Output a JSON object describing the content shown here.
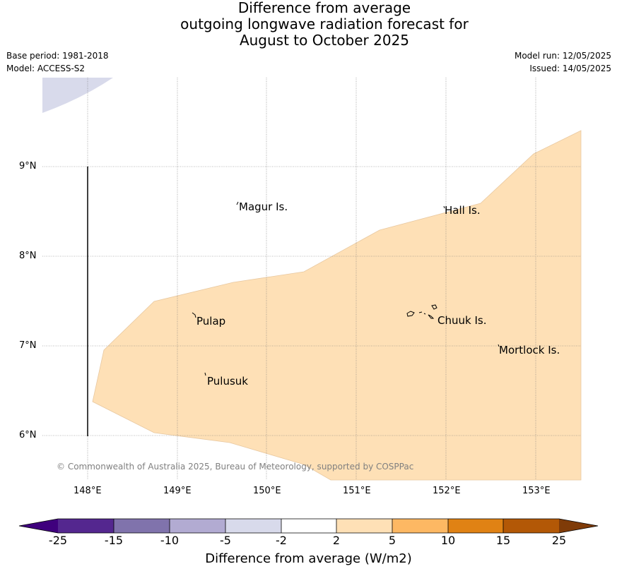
{
  "title_lines": [
    "Difference from average",
    "outgoing longwave radiation forecast for",
    "August to October 2025"
  ],
  "base_period": "Base period: 1981-2018",
  "model": "Model: ACCESS-S2",
  "model_run": "Model run: 12/05/2025",
  "issued": "Issued: 14/05/2025",
  "copyright": "© Commonwealth of Australia 2025, Bureau of Meteorology, supported by COSPPac",
  "map": {
    "lat_labels": [
      "9°N",
      "8°N",
      "7°N",
      "6°N"
    ],
    "lon_labels": [
      "148°E",
      "149°E",
      "150°E",
      "151°E",
      "152°E",
      "153°E"
    ],
    "places": [
      "Magur Is.",
      "Hall Is.",
      "Pulap",
      "Chuuk Is.",
      "Mortlock Is.",
      "Pulusuk"
    ]
  },
  "colorbar": {
    "ticks": [
      "-25",
      "-15",
      "-10",
      "-5",
      "-2",
      "2",
      "5",
      "10",
      "15",
      "25"
    ],
    "colors": [
      "#3f007d",
      "#54278f",
      "#8073ac",
      "#b2abd2",
      "#d8daeb",
      "#ffffff",
      "#fee0b6",
      "#fdb863",
      "#e08214",
      "#b35806",
      "#7f3b08"
    ],
    "label": "Difference from average (W/m2)"
  }
}
